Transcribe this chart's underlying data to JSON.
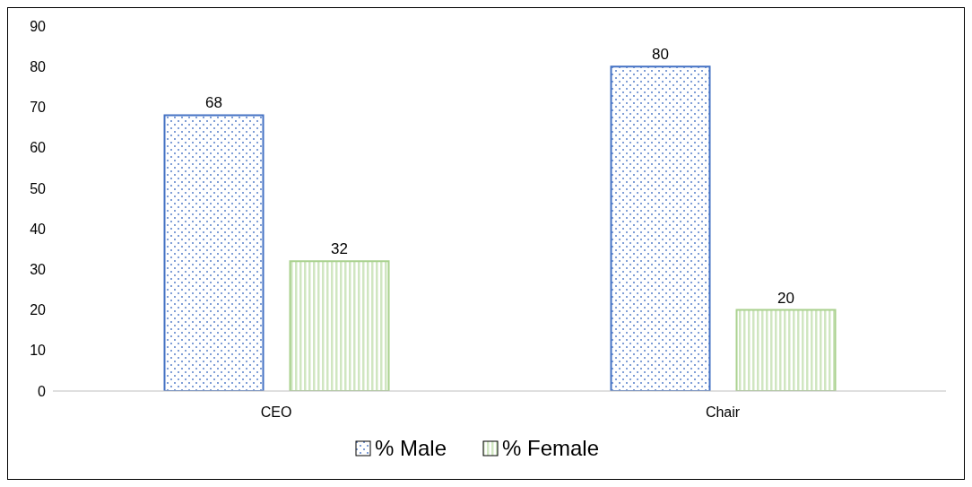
{
  "chart_data": {
    "type": "bar",
    "categories": [
      "CEO",
      "Chair"
    ],
    "series": [
      {
        "name": "% Male",
        "color": "#4472c4",
        "values": [
          68,
          80
        ]
      },
      {
        "name": "% Female",
        "color": "#a9d18e",
        "values": [
          32,
          20
        ]
      }
    ],
    "ylim": [
      0,
      90
    ],
    "yticks": [
      0,
      10,
      20,
      30,
      40,
      50,
      60,
      70,
      80,
      90
    ],
    "grid": false,
    "legend": "bottom",
    "data_labels": true
  }
}
